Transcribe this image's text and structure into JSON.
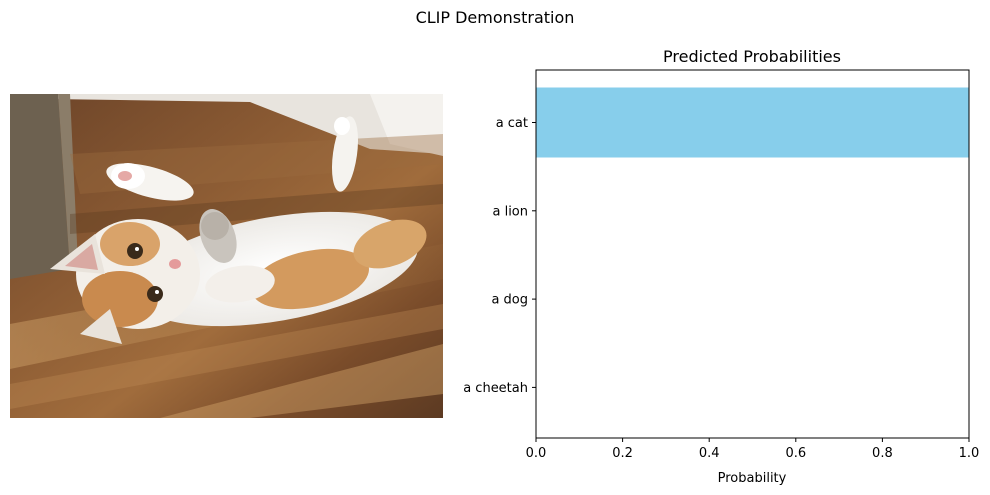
{
  "figure": {
    "title": "CLIP Demonstration"
  },
  "chart_data": {
    "type": "bar",
    "orientation": "horizontal",
    "title": "Predicted Probabilities",
    "xlabel": "Probability",
    "ylabel": "",
    "categories": [
      "a cat",
      "a lion",
      "a dog",
      "a cheetah"
    ],
    "values": [
      1.0,
      0.0,
      0.0,
      0.0
    ],
    "xlim": [
      0,
      1
    ],
    "xticks": [
      "0.0",
      "0.2",
      "0.4",
      "0.6",
      "0.8",
      "1.0"
    ],
    "bar_color": "#87ceeb",
    "grid": false
  },
  "photo": {
    "subject": "cat lying on wooden floor"
  }
}
